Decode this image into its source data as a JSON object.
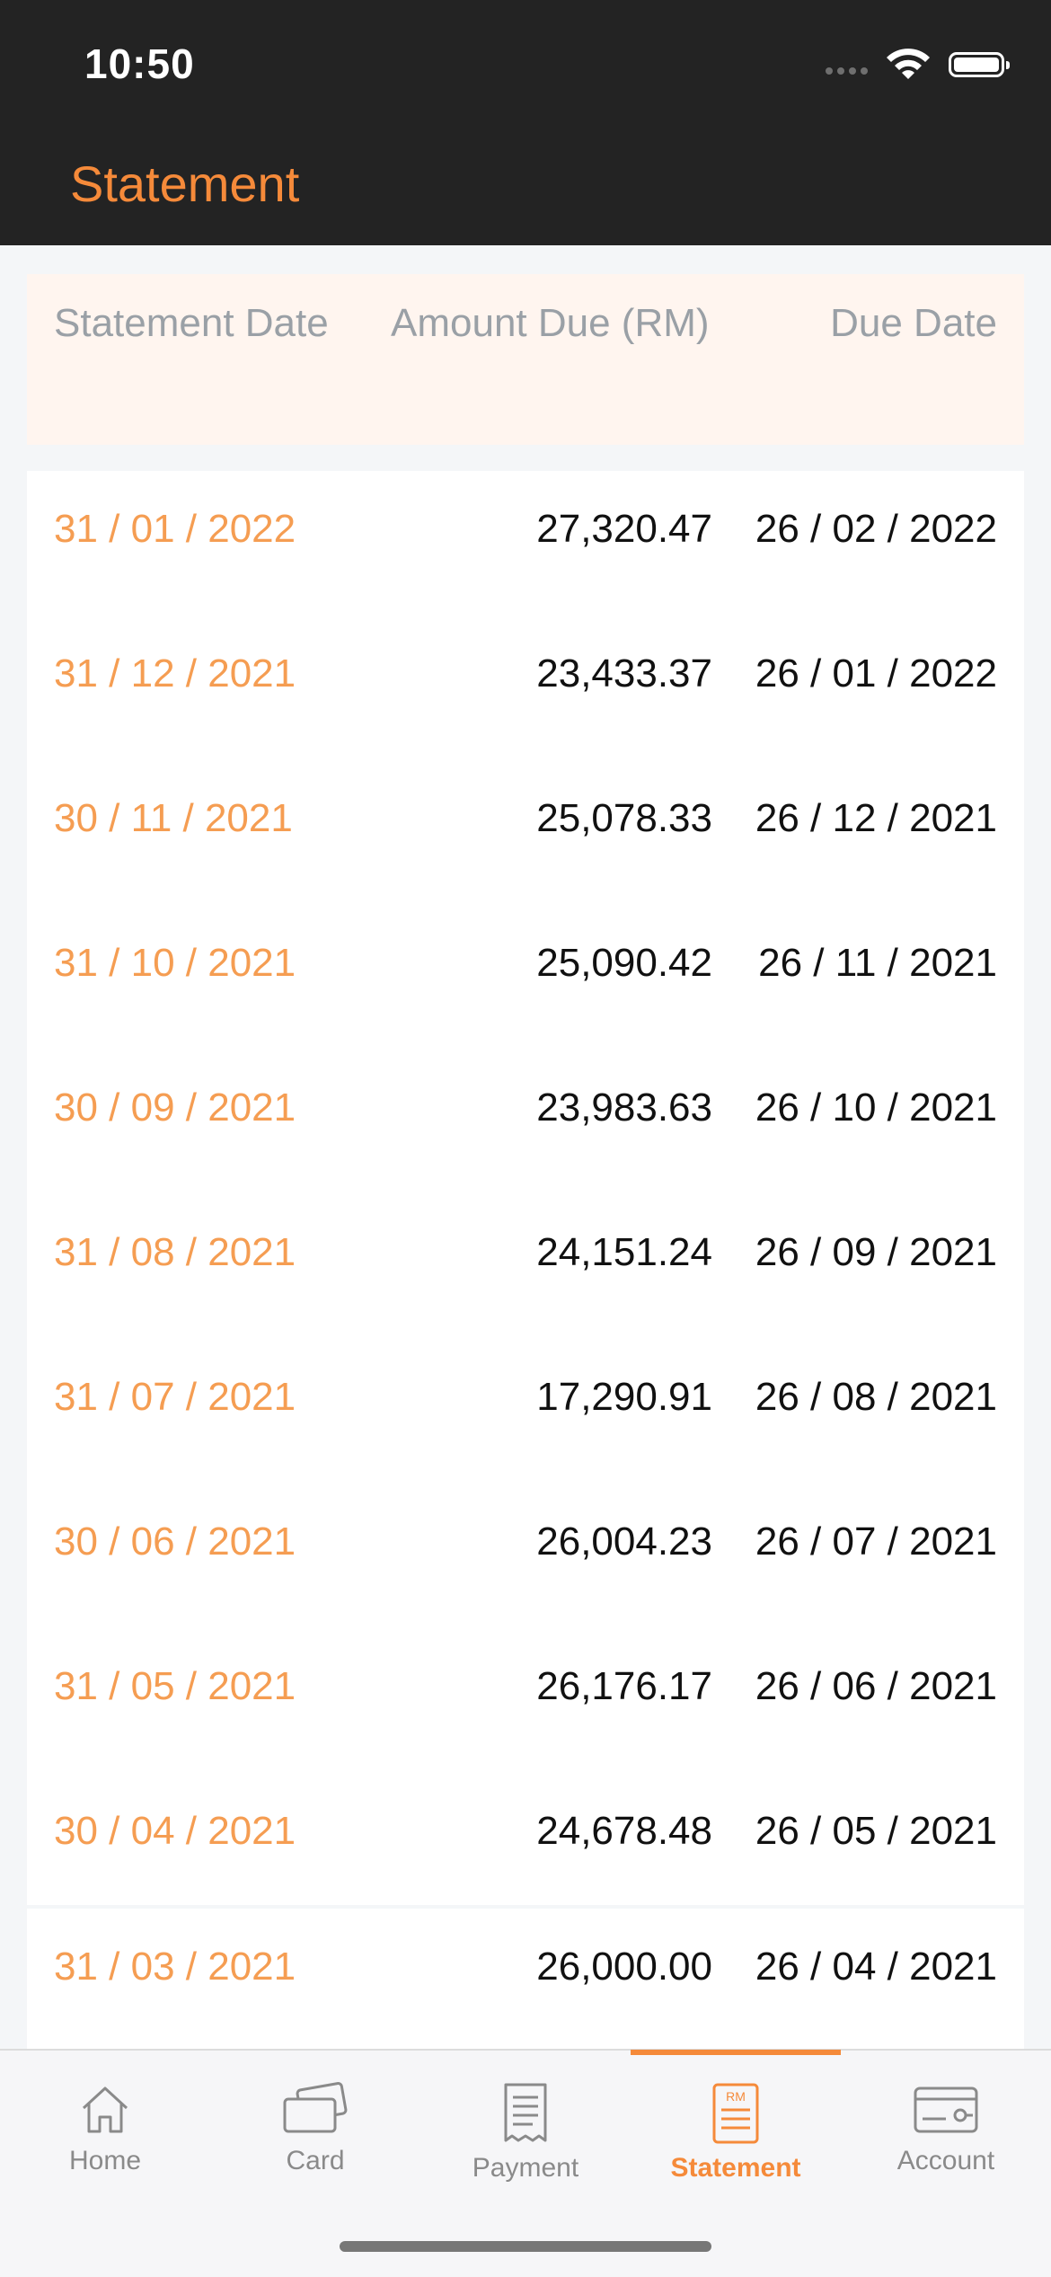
{
  "status_bar": {
    "time": "10:50"
  },
  "header": {
    "title": "Statement"
  },
  "table": {
    "columns": [
      "Statement Date",
      "Amount Due (RM)",
      "Due Date"
    ],
    "rows": [
      {
        "statement_date": "31 / 01 / 2022",
        "amount_due": "27,320.47",
        "due_date": "26 / 02 / 2022"
      },
      {
        "statement_date": "31 / 12 / 2021",
        "amount_due": "23,433.37",
        "due_date": "26 / 01 / 2022"
      },
      {
        "statement_date": "30 / 11 / 2021",
        "amount_due": "25,078.33",
        "due_date": "26 / 12 / 2021"
      },
      {
        "statement_date": "31 / 10 / 2021",
        "amount_due": "25,090.42",
        "due_date": "26 / 11 / 2021"
      },
      {
        "statement_date": "30 / 09 / 2021",
        "amount_due": "23,983.63",
        "due_date": "26 / 10 / 2021"
      },
      {
        "statement_date": "31 / 08 / 2021",
        "amount_due": "24,151.24",
        "due_date": "26 / 09 / 2021"
      },
      {
        "statement_date": "31 / 07 / 2021",
        "amount_due": "17,290.91",
        "due_date": "26 / 08 / 2021"
      },
      {
        "statement_date": "30 / 06 / 2021",
        "amount_due": "26,004.23",
        "due_date": "26 / 07 / 2021"
      },
      {
        "statement_date": "31 / 05 / 2021",
        "amount_due": "26,176.17",
        "due_date": "26 / 06 / 2021"
      },
      {
        "statement_date": "30 / 04 / 2021",
        "amount_due": "24,678.48",
        "due_date": "26 / 05 / 2021"
      },
      {
        "statement_date": "31 / 03 / 2021",
        "amount_due": "26,000.00",
        "due_date": "26 / 04 / 2021"
      }
    ]
  },
  "tabbar": {
    "items": [
      {
        "label": "Home",
        "icon": "home-icon"
      },
      {
        "label": "Card",
        "icon": "card-icon"
      },
      {
        "label": "Payment",
        "icon": "receipt-icon"
      },
      {
        "label": "Statement",
        "icon": "statement-icon",
        "badge": "RM",
        "active": true
      },
      {
        "label": "Account",
        "icon": "account-icon"
      }
    ]
  },
  "colors": {
    "accent": "#f58a3a",
    "date_text": "#f59d52",
    "topbar": "#232323"
  }
}
